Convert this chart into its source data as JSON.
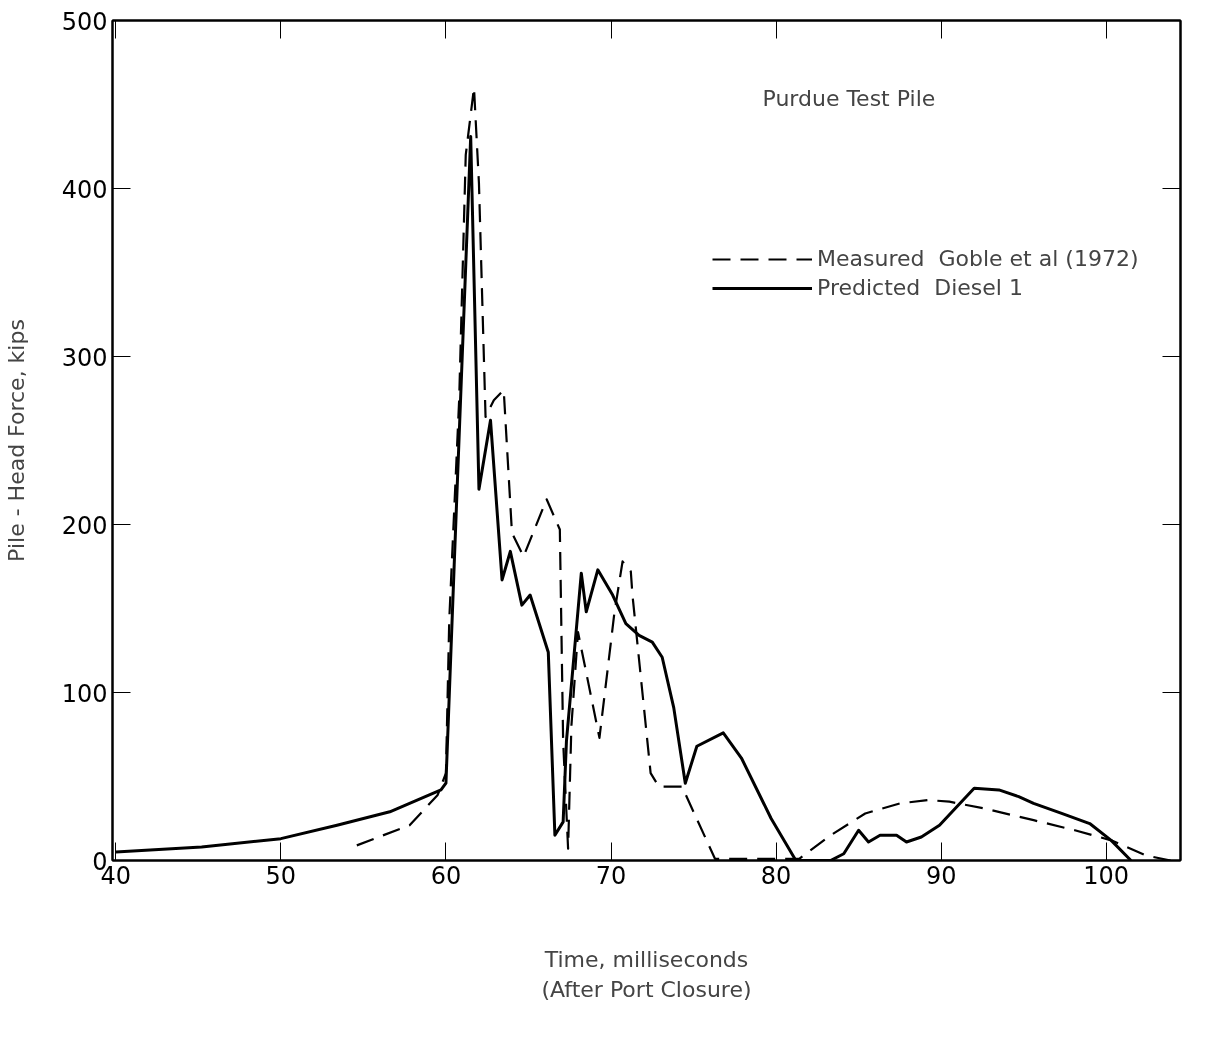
{
  "chart_data": {
    "type": "line",
    "xlabel": "Time, milliseconds\n(After Port Closure)",
    "ylabel": "Pile - Head Force, kips",
    "xlim": [
      39.8,
      104.5
    ],
    "ylim": [
      0,
      500
    ],
    "xticks": [
      40,
      50,
      60,
      70,
      80,
      90,
      100
    ],
    "yticks": [
      0,
      100,
      200,
      300,
      400,
      500
    ],
    "grid": false,
    "legend": "right",
    "marker": "none",
    "annotations": [
      "Purdue Test Pile"
    ],
    "series": [
      {
        "name": "Measured  Goble et al (1972)",
        "color": "#000000",
        "line_style": "dashed",
        "x": [
          54.6,
          57.8,
          59.5,
          60.0,
          60.2,
          60.8,
          61.2,
          61.7,
          62.0,
          62.4,
          62.9,
          63.5,
          64.0,
          64.7,
          66.1,
          66.9,
          67.1,
          67.4,
          67.6,
          68.0,
          69.3,
          70.2,
          70.7,
          71.2,
          71.3,
          72.4,
          72.9,
          74.3,
          76.3,
          81.4,
          83.3,
          85.4,
          87.5,
          89.2,
          90.5,
          92.6,
          95.6,
          98.1,
          100.3,
          102.4,
          103.9
        ],
        "values": [
          9,
          21,
          39,
          52,
          143,
          274,
          420,
          460,
          403,
          264,
          274,
          280,
          195,
          181,
          215,
          197,
          71,
          7,
          80,
          136,
          73,
          147,
          178,
          172,
          158,
          52,
          44,
          44,
          1,
          1,
          15,
          28,
          34,
          36,
          35,
          31,
          24,
          18,
          12,
          3,
          0
        ]
      },
      {
        "name": "Predicted  Diesel 1",
        "color": "#000000",
        "line_style": "solid",
        "x": [
          40.0,
          45.2,
          50.0,
          53.4,
          56.6,
          59.7,
          60.0,
          60.5,
          61.5,
          62.0,
          62.7,
          63.4,
          63.9,
          64.6,
          65.1,
          66.2,
          66.6,
          67.1,
          67.3,
          68.2,
          68.5,
          69.2,
          70.1,
          70.9,
          71.7,
          72.5,
          73.1,
          73.8,
          74.5,
          75.2,
          76.8,
          77.9,
          79.7,
          81.2,
          83.3,
          84.1,
          85.0,
          85.6,
          86.3,
          87.3,
          87.9,
          88.8,
          89.9,
          92.0,
          93.5,
          94.7,
          95.6,
          97.3,
          99.0,
          100.3,
          101.5
        ],
        "values": [
          5,
          8,
          13,
          21,
          29,
          42,
          46,
          176,
          431,
          221,
          262,
          167,
          184,
          152,
          158,
          124,
          15,
          23,
          71,
          171,
          148,
          173,
          158,
          141,
          134,
          130,
          121,
          91,
          46,
          68,
          76,
          61,
          25,
          0,
          0,
          4,
          18,
          11,
          15,
          15,
          11,
          14,
          21,
          43,
          42,
          38,
          34,
          28,
          22,
          12,
          0
        ]
      }
    ]
  }
}
